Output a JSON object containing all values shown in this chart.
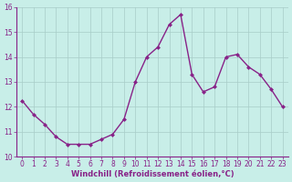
{
  "x": [
    0,
    1,
    2,
    3,
    4,
    5,
    6,
    7,
    8,
    9,
    10,
    11,
    12,
    13,
    14,
    15,
    16,
    17,
    18,
    19,
    20,
    21,
    22,
    23
  ],
  "y": [
    12.25,
    11.7,
    11.3,
    10.8,
    10.5,
    10.5,
    10.5,
    10.7,
    10.9,
    11.5,
    13.0,
    14.0,
    14.4,
    15.3,
    15.7,
    13.3,
    12.6,
    12.8,
    14.0,
    14.1,
    13.6,
    13.3,
    12.7,
    12.0
  ],
  "line_color": "#882288",
  "marker_color": "#882288",
  "bg_color": "#C8EEE8",
  "grid_color": "#A8CCC8",
  "spine_color": "#882288",
  "xlabel": "Windchill (Refroidissement éolien,°C)",
  "ylim": [
    10,
    16
  ],
  "xlim_min": -0.5,
  "xlim_max": 23.5,
  "yticks": [
    10,
    11,
    12,
    13,
    14,
    15,
    16
  ],
  "xticks": [
    0,
    1,
    2,
    3,
    4,
    5,
    6,
    7,
    8,
    9,
    10,
    11,
    12,
    13,
    14,
    15,
    16,
    17,
    18,
    19,
    20,
    21,
    22,
    23
  ],
  "line_width": 1.0,
  "marker_size": 2.5,
  "tick_fontsize": 5.5,
  "xlabel_fontsize": 6.0
}
